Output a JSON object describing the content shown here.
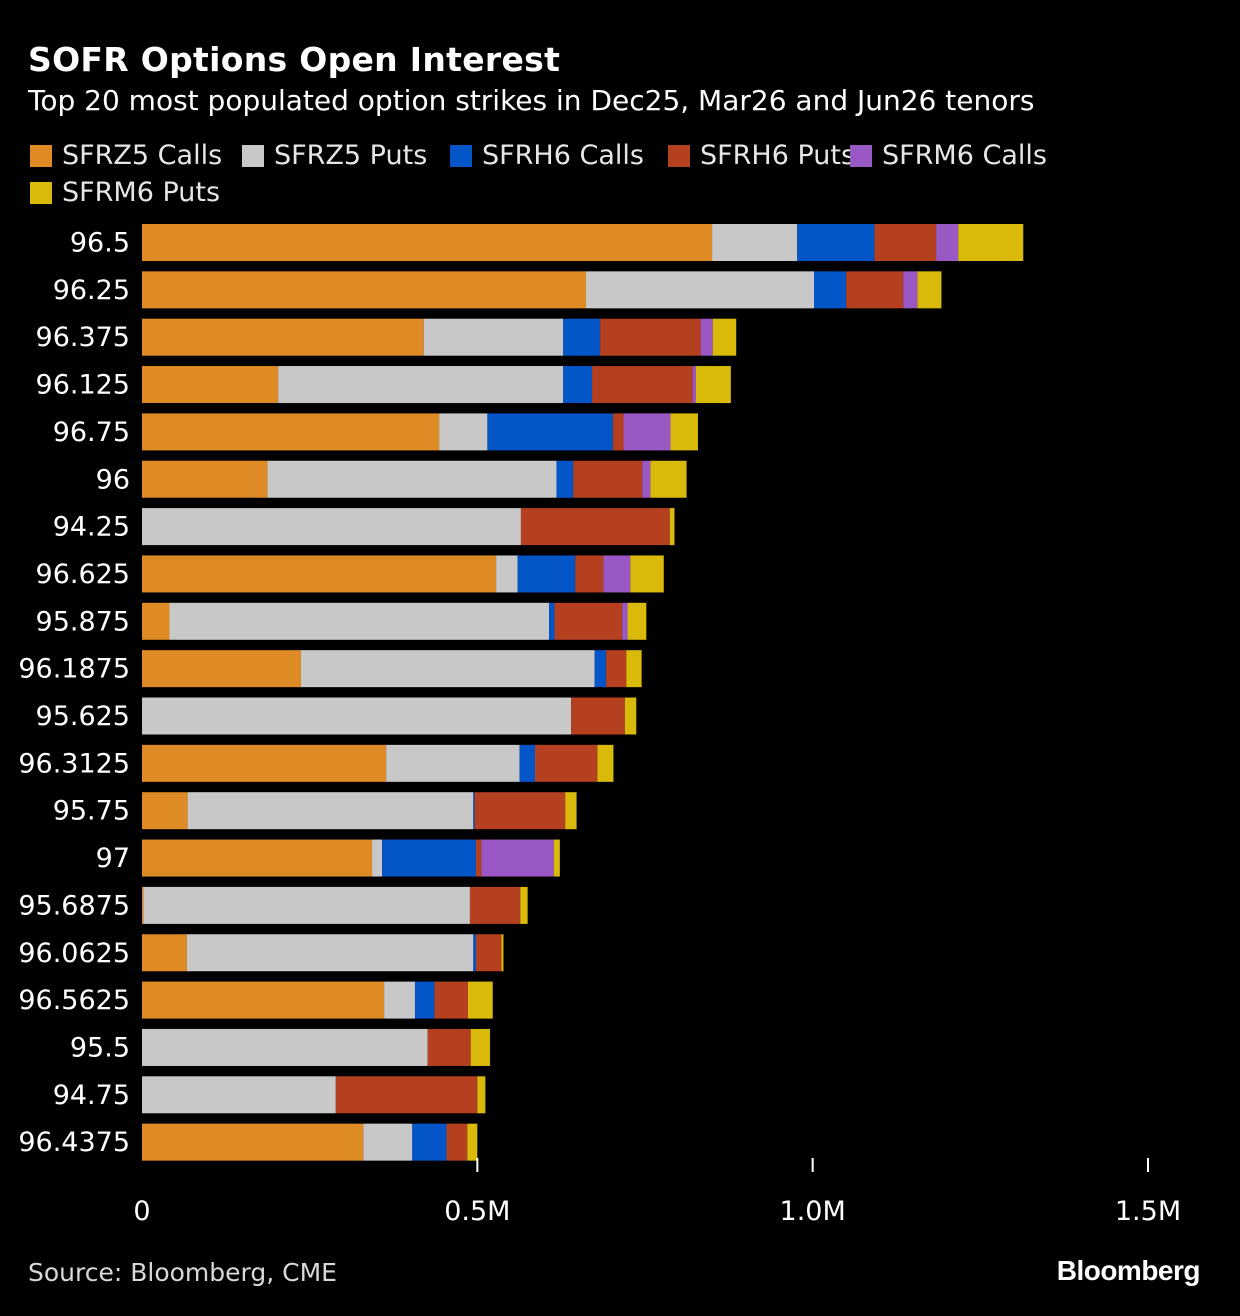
{
  "header": {
    "title": "SOFR Options Open Interest",
    "subtitle": "Top 20 most populated option strikes in Dec25, Mar26 and Jun26 tenors"
  },
  "footer": {
    "source": "Source: Bloomberg, CME",
    "brand": "Bloomberg"
  },
  "chart_data": {
    "type": "bar",
    "orientation": "horizontal",
    "stacked": true,
    "title": "SOFR Options Open Interest",
    "subtitle": "Top 20 most populated option strikes in Dec25, Mar26 and Jun26 tenors",
    "xlim": [
      0,
      1500000
    ],
    "x_ticks": [
      0,
      500000,
      1000000,
      1500000
    ],
    "x_tick_labels": [
      "0",
      "0.5M",
      "1.0M",
      "1.5M"
    ],
    "legend_position": "top",
    "categories": [
      "96.5",
      "96.25",
      "96.375",
      "96.125",
      "96.75",
      "96",
      "94.25",
      "96.625",
      "95.875",
      "96.1875",
      "95.625",
      "96.3125",
      "95.75",
      "97",
      "95.6875",
      "96.0625",
      "96.5625",
      "95.5",
      "94.75",
      "96.4375"
    ],
    "series": [
      {
        "name": "SFRZ5 Calls",
        "color": "#de8b26",
        "values": [
          850000,
          662000,
          420000,
          203000,
          443000,
          187000,
          0,
          528000,
          41000,
          237000,
          0,
          364000,
          68000,
          343000,
          2000,
          67000,
          361000,
          0,
          0,
          330000
        ]
      },
      {
        "name": "SFRZ5 Puts",
        "color": "#c8c8c8",
        "values": [
          127000,
          340000,
          208000,
          425000,
          72000,
          431000,
          565000,
          32000,
          566000,
          438000,
          640000,
          199000,
          426000,
          15000,
          487000,
          427000,
          46000,
          426000,
          289000,
          73000
        ]
      },
      {
        "name": "SFRH6 Calls",
        "color": "#0455c7",
        "values": [
          115000,
          48000,
          55000,
          43000,
          187000,
          25000,
          0,
          86000,
          8000,
          17000,
          0,
          23000,
          2000,
          140000,
          0,
          4000,
          29000,
          0,
          0,
          51000
        ]
      },
      {
        "name": "SFRH6 Puts",
        "color": "#b5401f",
        "values": [
          92000,
          85000,
          150000,
          150000,
          16000,
          103000,
          222000,
          42000,
          101000,
          30000,
          80000,
          93000,
          135000,
          8000,
          75000,
          38000,
          50000,
          64000,
          211000,
          31000
        ]
      },
      {
        "name": "SFRM6 Calls",
        "color": "#9a58c4",
        "values": [
          33000,
          21000,
          18000,
          5000,
          70000,
          12000,
          0,
          40000,
          8000,
          0,
          0,
          0,
          0,
          108000,
          0,
          0,
          0,
          0,
          0,
          0
        ]
      },
      {
        "name": "SFRM6 Puts",
        "color": "#d9b90a",
        "values": [
          97000,
          36000,
          35000,
          52000,
          41000,
          54000,
          7000,
          50000,
          28000,
          23000,
          17000,
          24000,
          17000,
          9000,
          11000,
          3000,
          37000,
          29000,
          12000,
          15000
        ]
      }
    ]
  }
}
